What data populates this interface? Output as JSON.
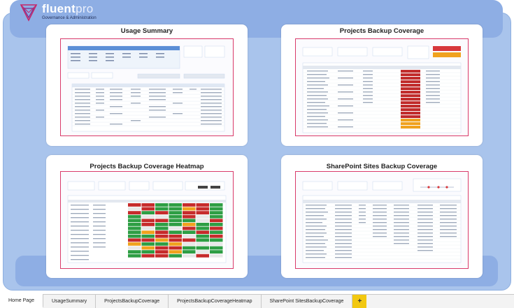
{
  "app": {
    "logo_name_a": "fluent",
    "logo_name_b": "pro",
    "logo_subtitle": "Governance & Administration"
  },
  "cards": [
    {
      "title": "Usage Summary",
      "thumbnail": "usage-summary-preview"
    },
    {
      "title": "Projects Backup Coverage",
      "thumbnail": "projects-backup-coverage-preview"
    },
    {
      "title": "Projects Backup Coverage Heatmap",
      "thumbnail": "projects-backup-heatmap-preview"
    },
    {
      "title": "SharePoint Sites Backup Coverage",
      "thumbnail": "sharepoint-backup-coverage-preview"
    }
  ],
  "tabs": [
    {
      "label": "Home Page",
      "active": true
    },
    {
      "label": "UsageSummary",
      "active": false
    },
    {
      "label": "ProjectsBackupCoverage",
      "active": false
    },
    {
      "label": "ProjectsBackupCoverageHeatmap",
      "active": false
    },
    {
      "label": "SharePoint SitesBackupCoverage",
      "active": false
    }
  ],
  "add_tab_label": "+",
  "colors": {
    "frame": "#a9c4ec",
    "band": "#8eaee4",
    "thumb_border": "#d93a6a",
    "add_tab": "#f2c811"
  }
}
